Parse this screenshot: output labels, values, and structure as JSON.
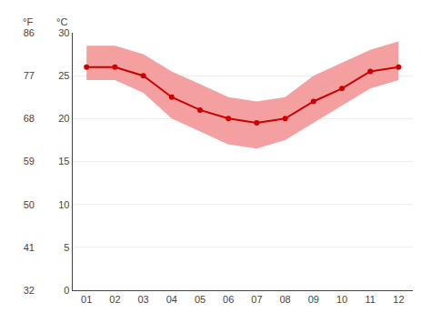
{
  "chart_data": {
    "type": "line",
    "x": [
      1,
      2,
      3,
      4,
      5,
      6,
      7,
      8,
      9,
      10,
      11,
      12
    ],
    "xlim": [
      0.5,
      12.5
    ],
    "xticks": [
      {
        "value": 1,
        "label": "01"
      },
      {
        "value": 2,
        "label": "02"
      },
      {
        "value": 3,
        "label": "03"
      },
      {
        "value": 4,
        "label": "04"
      },
      {
        "value": 5,
        "label": "05"
      },
      {
        "value": 6,
        "label": "06"
      },
      {
        "value": 7,
        "label": "07"
      },
      {
        "value": 8,
        "label": "08"
      },
      {
        "value": 9,
        "label": "09"
      },
      {
        "value": 10,
        "label": "10"
      },
      {
        "value": 11,
        "label": "11"
      },
      {
        "value": 12,
        "label": "12"
      }
    ],
    "ylabel": "°C",
    "ylim": [
      0,
      30
    ],
    "yticks": [
      0,
      5,
      10,
      15,
      20,
      25,
      30
    ],
    "y2label": "°F",
    "y2lim": [
      32,
      86
    ],
    "y2ticks": [
      32,
      41,
      50,
      59,
      68,
      77,
      86
    ],
    "grid": "y",
    "series": [
      {
        "type": "range",
        "low": [
          24.5,
          24.5,
          23.0,
          20.0,
          18.5,
          17.0,
          16.5,
          17.5,
          19.5,
          21.5,
          23.5,
          24.5
        ],
        "high": [
          28.5,
          28.5,
          27.5,
          25.5,
          24.0,
          22.5,
          22.0,
          22.5,
          25.0,
          26.5,
          28.0,
          29.0
        ],
        "color": "#f4a0a0"
      },
      {
        "type": "line",
        "values": [
          26.0,
          26.0,
          25.0,
          22.5,
          21.0,
          20.0,
          19.5,
          20.0,
          22.0,
          23.5,
          25.5,
          26.0
        ],
        "color": "#cc0000",
        "marker": "circle"
      }
    ]
  }
}
